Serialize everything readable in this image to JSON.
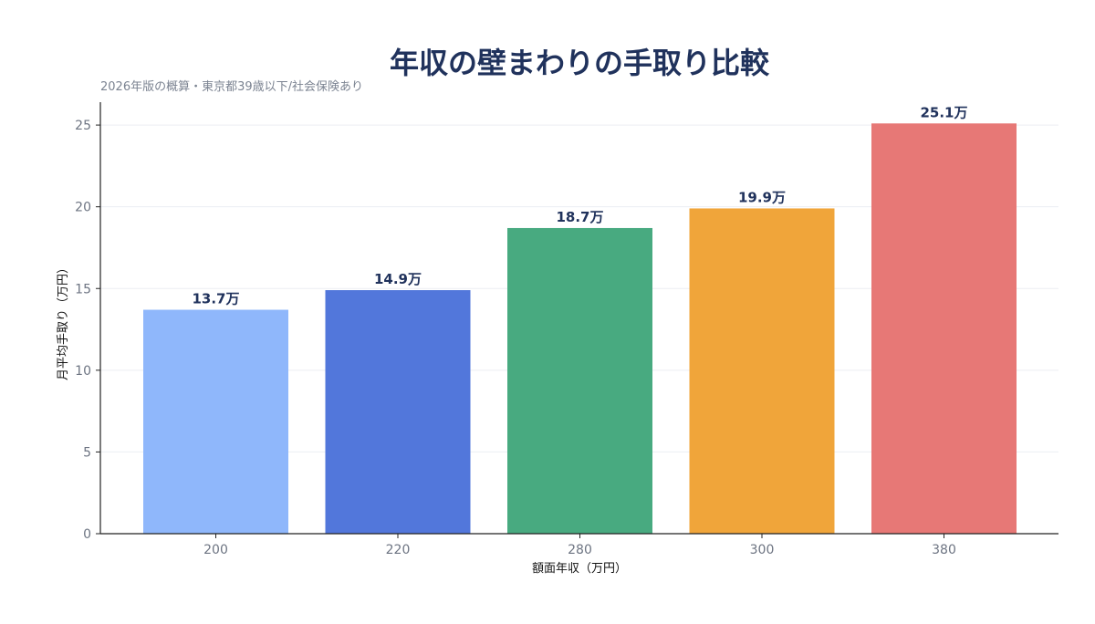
{
  "chart_data": {
    "type": "bar",
    "title": "年収の壁まわりの手取り比較",
    "subtitle": "2026年版の概算・東京都39歳以下/社会保険あり",
    "xlabel": "額面年収（万円）",
    "ylabel": "月平均手取り（万円）",
    "categories": [
      "200",
      "220",
      "280",
      "300",
      "380"
    ],
    "values": [
      13.7,
      14.9,
      18.7,
      19.9,
      25.1
    ],
    "value_labels": [
      "13.7万",
      "14.9万",
      "18.7万",
      "19.9万",
      "25.1万"
    ],
    "bar_colors": [
      "#8fb7fb",
      "#5277db",
      "#48aa80",
      "#f0a53a",
      "#e77876"
    ],
    "ylim": [
      0,
      26.4
    ],
    "yticks": [
      0,
      5,
      10,
      15,
      20,
      25
    ],
    "ytick_labels": [
      "0",
      "5",
      "10",
      "15",
      "20",
      "25"
    ],
    "grid": true,
    "grid_axis": "y"
  },
  "colors": {
    "title": "#20325c",
    "subtitle": "#7b8391",
    "tick_text": "#6d7482",
    "axis_text": "#111111",
    "axis_line": "#222222",
    "grid": "#eceef2",
    "value_text": "#20325c"
  }
}
